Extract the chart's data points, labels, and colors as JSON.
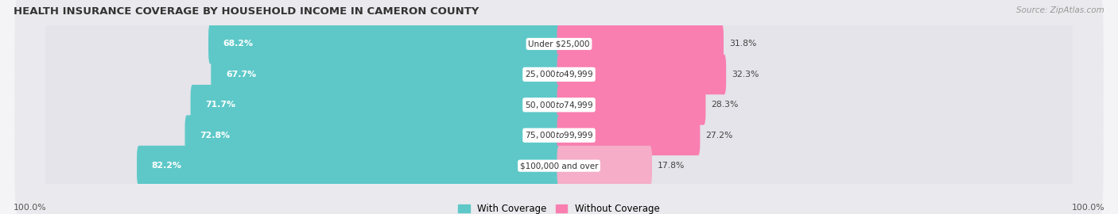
{
  "title": "HEALTH INSURANCE COVERAGE BY HOUSEHOLD INCOME IN CAMERON COUNTY",
  "source": "Source: ZipAtlas.com",
  "categories": [
    "Under $25,000",
    "$25,000 to $49,999",
    "$50,000 to $74,999",
    "$75,000 to $99,999",
    "$100,000 and over"
  ],
  "with_coverage": [
    68.2,
    67.7,
    71.7,
    72.8,
    82.2
  ],
  "without_coverage": [
    31.8,
    32.3,
    28.3,
    27.2,
    17.8
  ],
  "color_with": "#5ec8c8",
  "color_without": "#f97fb0",
  "color_without_last": "#f5adc8",
  "bar_bg_color": "#e4e4ea",
  "background_color": "#f4f4f7",
  "row_bg_color": "#eaeaee",
  "bar_height": 0.52,
  "legend_with": "With Coverage",
  "legend_without": "Without Coverage",
  "left_label": "100.0%",
  "right_label": "100.0%",
  "title_fontsize": 9.5,
  "source_fontsize": 7.5,
  "label_fontsize": 7.8,
  "pct_fontsize": 7.8,
  "cat_fontsize": 7.5
}
